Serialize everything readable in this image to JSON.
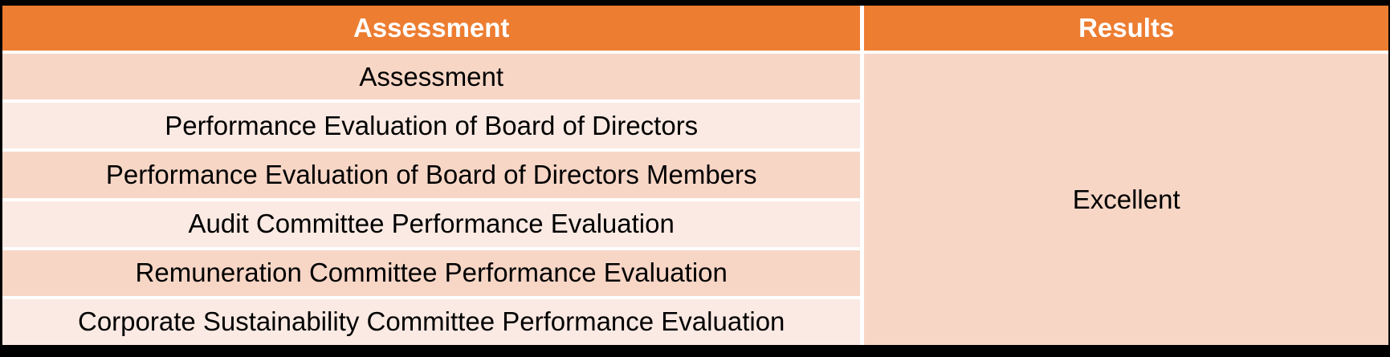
{
  "table": {
    "columns": [
      {
        "label": "Assessment"
      },
      {
        "label": "Results"
      }
    ],
    "rows": [
      {
        "assessment": "Assessment"
      },
      {
        "assessment": "Performance Evaluation of Board of Directors"
      },
      {
        "assessment": "Performance Evaluation of Board of Directors Members"
      },
      {
        "assessment": "Audit Committee Performance Evaluation"
      },
      {
        "assessment": "Remuneration Committee Performance Evaluation"
      },
      {
        "assessment": "Corporate Sustainability Committee Performance Evaluation"
      }
    ],
    "merged_result": "Excellent"
  },
  "colors": {
    "header_bg": "#ED7D31",
    "header_text": "#FFFFFF",
    "row_odd_bg": "#F7D6C6",
    "row_even_bg": "#FBEAE3",
    "result_cell_bg": "#F7D6C6",
    "body_text": "#000000",
    "separator": "#FFFFFF",
    "frame": "#000000"
  }
}
